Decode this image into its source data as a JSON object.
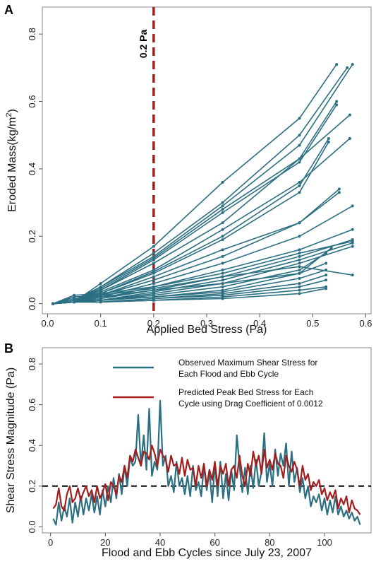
{
  "colors": {
    "teal": "#2a6f82",
    "red": "#a31d1d",
    "black": "#000000"
  },
  "chart_data": [
    {
      "panel_label": "A",
      "type": "line",
      "xlabel": "Applied Bed Stress (Pa)",
      "ylabel": "Eroded Mass(kg/m2)",
      "xlim": [
        -0.01,
        0.61
      ],
      "ylim": [
        -0.03,
        0.88
      ],
      "xticks": [
        "0.0",
        "0.1",
        "0.2",
        "0.3",
        "0.4",
        "0.5",
        "0.6"
      ],
      "yticks": [
        "0.0",
        "0.2",
        "0.4",
        "0.6",
        "0.8"
      ],
      "vline": {
        "x": 0.2,
        "label": "0.2 Pa",
        "color": "#a31d1d",
        "style": "dashed"
      },
      "series": [
        {
          "points": [
            [
              0.01,
              0
            ],
            [
              0.05,
              0.005
            ],
            [
              0.1,
              0.06
            ],
            [
              0.2,
              0.17
            ],
            [
              0.33,
              0.36
            ],
            [
              0.475,
              0.55
            ],
            [
              0.545,
              0.71
            ]
          ]
        },
        {
          "points": [
            [
              0.01,
              0
            ],
            [
              0.05,
              0.005
            ],
            [
              0.1,
              0.05
            ],
            [
              0.2,
              0.15
            ],
            [
              0.33,
              0.3
            ],
            [
              0.475,
              0.5
            ],
            [
              0.565,
              0.7
            ]
          ]
        },
        {
          "points": [
            [
              0.01,
              0
            ],
            [
              0.05,
              0.01
            ],
            [
              0.1,
              0.05
            ],
            [
              0.2,
              0.14
            ],
            [
              0.33,
              0.29
            ],
            [
              0.475,
              0.47
            ],
            [
              0.575,
              0.71
            ]
          ]
        },
        {
          "points": [
            [
              0.01,
              0
            ],
            [
              0.05,
              0.005
            ],
            [
              0.1,
              0.045
            ],
            [
              0.2,
              0.135
            ],
            [
              0.33,
              0.28
            ],
            [
              0.475,
              0.43
            ],
            [
              0.545,
              0.6
            ]
          ]
        },
        {
          "points": [
            [
              0.01,
              0
            ],
            [
              0.05,
              0.01
            ],
            [
              0.1,
              0.04
            ],
            [
              0.2,
              0.13
            ],
            [
              0.33,
              0.27
            ],
            [
              0.475,
              0.42
            ],
            [
              0.545,
              0.59
            ]
          ]
        },
        {
          "points": [
            [
              0.01,
              0
            ],
            [
              0.05,
              0.005
            ],
            [
              0.1,
              0.04
            ],
            [
              0.2,
              0.12
            ],
            [
              0.33,
              0.24
            ],
            [
              0.475,
              0.43
            ],
            [
              0.57,
              0.56
            ]
          ]
        },
        {
          "points": [
            [
              0.01,
              0
            ],
            [
              0.05,
              0.005
            ],
            [
              0.1,
              0.035
            ],
            [
              0.2,
              0.1
            ],
            [
              0.33,
              0.22
            ],
            [
              0.475,
              0.36
            ],
            [
              0.57,
              0.49
            ]
          ]
        },
        {
          "points": [
            [
              0.01,
              0
            ],
            [
              0.05,
              0.005
            ],
            [
              0.1,
              0.03
            ],
            [
              0.2,
              0.095
            ],
            [
              0.33,
              0.2
            ],
            [
              0.475,
              0.35
            ],
            [
              0.53,
              0.49
            ]
          ]
        },
        {
          "points": [
            [
              0.01,
              0
            ],
            [
              0.05,
              0.005
            ],
            [
              0.1,
              0.03
            ],
            [
              0.2,
              0.09
            ],
            [
              0.33,
              0.19
            ],
            [
              0.475,
              0.33
            ],
            [
              0.53,
              0.48
            ]
          ]
        },
        {
          "points": [
            [
              0.01,
              0
            ],
            [
              0.05,
              0.005
            ],
            [
              0.1,
              0.025
            ],
            [
              0.2,
              0.08
            ],
            [
              0.33,
              0.16
            ],
            [
              0.475,
              0.24
            ],
            [
              0.55,
              0.34
            ]
          ]
        },
        {
          "points": [
            [
              0.01,
              0
            ],
            [
              0.05,
              0.005
            ],
            [
              0.1,
              0.025
            ],
            [
              0.2,
              0.07
            ],
            [
              0.33,
              0.14
            ],
            [
              0.475,
              0.24
            ],
            [
              0.55,
              0.33
            ]
          ]
        },
        {
          "points": [
            [
              0.01,
              0
            ],
            [
              0.05,
              0.005
            ],
            [
              0.1,
              0.02
            ],
            [
              0.2,
              0.06
            ],
            [
              0.33,
              0.12
            ],
            [
              0.475,
              0.2
            ],
            [
              0.575,
              0.29
            ]
          ]
        },
        {
          "points": [
            [
              0.01,
              0
            ],
            [
              0.05,
              0.005
            ],
            [
              0.1,
              0.015
            ],
            [
              0.2,
              0.05
            ],
            [
              0.33,
              0.1
            ],
            [
              0.475,
              0.16
            ],
            [
              0.575,
              0.22
            ]
          ]
        },
        {
          "points": [
            [
              0.01,
              0
            ],
            [
              0.05,
              0.005
            ],
            [
              0.1,
              0.015
            ],
            [
              0.2,
              0.04
            ],
            [
              0.33,
              0.08
            ],
            [
              0.475,
              0.14
            ],
            [
              0.575,
              0.19
            ]
          ]
        },
        {
          "points": [
            [
              0.01,
              0
            ],
            [
              0.05,
              0.005
            ],
            [
              0.1,
              0.01
            ],
            [
              0.2,
              0.035
            ],
            [
              0.33,
              0.07
            ],
            [
              0.475,
              0.13
            ],
            [
              0.575,
              0.18
            ]
          ]
        },
        {
          "points": [
            [
              0.01,
              0
            ],
            [
              0.05,
              0.005
            ],
            [
              0.1,
              0.01
            ],
            [
              0.2,
              0.03
            ],
            [
              0.33,
              0.06
            ],
            [
              0.475,
              0.12
            ],
            [
              0.575,
              0.17
            ]
          ]
        },
        {
          "points": [
            [
              0.01,
              0
            ],
            [
              0.05,
              0.005
            ],
            [
              0.1,
              0.01
            ],
            [
              0.2,
              0.025
            ],
            [
              0.33,
              0.05
            ],
            [
              0.475,
              0.1
            ],
            [
              0.525,
              0.15
            ]
          ]
        },
        {
          "points": [
            [
              0.01,
              0
            ],
            [
              0.05,
              0.005
            ],
            [
              0.1,
              0.01
            ],
            [
              0.2,
              0.02
            ],
            [
              0.33,
              0.04
            ],
            [
              0.475,
              0.09
            ],
            [
              0.525,
              0.12
            ]
          ]
        },
        {
          "points": [
            [
              0.01,
              0
            ],
            [
              0.05,
              0.005
            ],
            [
              0.1,
              0.01
            ],
            [
              0.2,
              0.02
            ],
            [
              0.33,
              0.035
            ],
            [
              0.475,
              0.075
            ],
            [
              0.525,
              0.1
            ]
          ]
        },
        {
          "points": [
            [
              0.01,
              0
            ],
            [
              0.05,
              0.005
            ],
            [
              0.1,
              0.005
            ],
            [
              0.2,
              0.015
            ],
            [
              0.33,
              0.03
            ],
            [
              0.475,
              0.06
            ],
            [
              0.525,
              0.085
            ]
          ]
        },
        {
          "points": [
            [
              0.01,
              0
            ],
            [
              0.05,
              0.005
            ],
            [
              0.1,
              0.005
            ],
            [
              0.2,
              0.015
            ],
            [
              0.33,
              0.025
            ],
            [
              0.475,
              0.05
            ],
            [
              0.525,
              0.07
            ]
          ]
        },
        {
          "points": [
            [
              0.01,
              0
            ],
            [
              0.05,
              0.005
            ],
            [
              0.1,
              0.005
            ],
            [
              0.2,
              0.01
            ],
            [
              0.33,
              0.02
            ],
            [
              0.475,
              0.04
            ],
            [
              0.525,
              0.05
            ]
          ]
        },
        {
          "points": [
            [
              0.01,
              0
            ],
            [
              0.05,
              0.005
            ],
            [
              0.1,
              0.005
            ],
            [
              0.2,
              0.01
            ],
            [
              0.33,
              0.015
            ],
            [
              0.475,
              0.03
            ],
            [
              0.525,
              0.045
            ]
          ]
        },
        {
          "points": [
            [
              0.01,
              0
            ],
            [
              0.05,
              0.025
            ],
            [
              0.1,
              0.03
            ],
            [
              0.2,
              0.05
            ],
            [
              0.33,
              0.09
            ],
            [
              0.475,
              0.15
            ],
            [
              0.575,
              0.185
            ]
          ]
        },
        {
          "points": [
            [
              0.01,
              0
            ],
            [
              0.05,
              0.02
            ],
            [
              0.1,
              0.025
            ],
            [
              0.2,
              0.045
            ],
            [
              0.33,
              0.08
            ],
            [
              0.475,
              0.11
            ],
            [
              0.575,
              0.085
            ]
          ]
        },
        {
          "points": [
            [
              0.01,
              0
            ],
            [
              0.05,
              0.015
            ],
            [
              0.1,
              0.02
            ],
            [
              0.2,
              0.04
            ],
            [
              0.33,
              0.06
            ],
            [
              0.475,
              0.09
            ],
            [
              0.535,
              0.165
            ]
          ]
        }
      ]
    },
    {
      "panel_label": "B",
      "type": "line",
      "xlabel": "Flood and Ebb Cycles since July 23, 2007",
      "ylabel": "Shear Stress Magnitude (Pa)",
      "xlim": [
        -3,
        117
      ],
      "ylim": [
        -0.03,
        0.88
      ],
      "xticks": [
        "0",
        "20",
        "40",
        "60",
        "80",
        "100"
      ],
      "yticks": [
        "0.0",
        "0.2",
        "0.4",
        "0.6",
        "0.8"
      ],
      "hline": {
        "y": 0.2,
        "color": "#000000",
        "style": "dashed"
      },
      "legend": {
        "placement": "top-center"
      },
      "series": [
        {
          "name": "Observed Maximum Shear Stress for Each Flood and Ebb Cycle",
          "color": "#2a6f82",
          "values": [
            0.04,
            0.01,
            0.12,
            0.03,
            0.1,
            0.05,
            0.14,
            0.02,
            0.12,
            0.05,
            0.15,
            0.06,
            0.14,
            0.08,
            0.16,
            0.07,
            0.15,
            0.06,
            0.18,
            0.1,
            0.2,
            0.12,
            0.24,
            0.14,
            0.26,
            0.16,
            0.3,
            0.2,
            0.34,
            0.3,
            0.32,
            0.55,
            0.3,
            0.45,
            0.28,
            0.58,
            0.25,
            0.32,
            0.28,
            0.62,
            0.3,
            0.35,
            0.2,
            0.25,
            0.17,
            0.32,
            0.2,
            0.24,
            0.16,
            0.25,
            0.15,
            0.3,
            0.18,
            0.22,
            0.15,
            0.3,
            0.18,
            0.27,
            0.12,
            0.31,
            0.15,
            0.32,
            0.14,
            0.26,
            0.13,
            0.28,
            0.18,
            0.45,
            0.3,
            0.17,
            0.29,
            0.16,
            0.3,
            0.19,
            0.33,
            0.2,
            0.27,
            0.46,
            0.22,
            0.31,
            0.2,
            0.38,
            0.25,
            0.36,
            0.3,
            0.41,
            0.2,
            0.37,
            0.22,
            0.29,
            0.17,
            0.24,
            0.14,
            0.2,
            0.1,
            0.15,
            0.12,
            0.16,
            0.08,
            0.14,
            0.06,
            0.13,
            0.07,
            0.15,
            0.06,
            0.1,
            0.05,
            0.08,
            0.04,
            0.07,
            0.03,
            0.05,
            0.01
          ]
        },
        {
          "name": "Predicted Peak Bed Stress for Each Cycle using Drag Coefficient of 0.0012",
          "color": "#a31d1d",
          "values": [
            0.09,
            0.11,
            0.19,
            0.1,
            0.08,
            0.16,
            0.2,
            0.12,
            0.14,
            0.19,
            0.13,
            0.17,
            0.2,
            0.15,
            0.18,
            0.12,
            0.2,
            0.14,
            0.17,
            0.21,
            0.13,
            0.22,
            0.2,
            0.16,
            0.25,
            0.22,
            0.3,
            0.24,
            0.35,
            0.32,
            0.38,
            0.34,
            0.3,
            0.37,
            0.36,
            0.33,
            0.4,
            0.36,
            0.3,
            0.38,
            0.35,
            0.33,
            0.27,
            0.35,
            0.3,
            0.31,
            0.26,
            0.34,
            0.25,
            0.33,
            0.28,
            0.29,
            0.2,
            0.3,
            0.24,
            0.31,
            0.2,
            0.28,
            0.23,
            0.32,
            0.2,
            0.3,
            0.26,
            0.31,
            0.2,
            0.28,
            0.3,
            0.24,
            0.35,
            0.25,
            0.2,
            0.31,
            0.25,
            0.37,
            0.3,
            0.35,
            0.26,
            0.38,
            0.29,
            0.33,
            0.28,
            0.36,
            0.31,
            0.3,
            0.24,
            0.35,
            0.3,
            0.27,
            0.32,
            0.28,
            0.2,
            0.3,
            0.23,
            0.26,
            0.18,
            0.22,
            0.2,
            0.23,
            0.16,
            0.19,
            0.13,
            0.17,
            0.14,
            0.18,
            0.09,
            0.14,
            0.11,
            0.15,
            0.07,
            0.13,
            0.09,
            0.08,
            0.06
          ]
        }
      ]
    }
  ]
}
